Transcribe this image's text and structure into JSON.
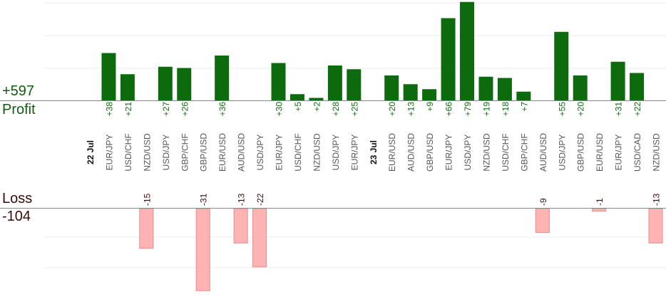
{
  "summary": {
    "profit_total": "+597",
    "profit_label": "Profit",
    "loss_label": "Loss",
    "loss_total": "-104"
  },
  "colors": {
    "profit_bar": "#0d6b0d",
    "profit_text": "#0f6e0f",
    "loss_bar": "#ffb3b3",
    "loss_bar_border": "#e88b8b",
    "loss_text": "#3a0a0a",
    "grid": "#eeeeee",
    "axis": "#888888"
  },
  "chart_data": {
    "type": "bar",
    "date_labels": [
      "22 Jul",
      "23 Jul"
    ],
    "grid": true,
    "items": [
      {
        "kind": "date",
        "label": "22 Jul"
      },
      {
        "kind": "trade",
        "pair": "EUR/JPY",
        "value": 38,
        "label": "+38"
      },
      {
        "kind": "trade",
        "pair": "USD/CHF",
        "value": 21,
        "label": "+21"
      },
      {
        "kind": "trade",
        "pair": "NZD/USD",
        "value": -15,
        "label": "-15"
      },
      {
        "kind": "trade",
        "pair": "USD/JPY",
        "value": 27,
        "label": "+27"
      },
      {
        "kind": "trade",
        "pair": "GBP/CHF",
        "value": 26,
        "label": "+26"
      },
      {
        "kind": "trade",
        "pair": "GBP/USD",
        "value": -31,
        "label": "-31"
      },
      {
        "kind": "trade",
        "pair": "EUR/USD",
        "value": 36,
        "label": "+36"
      },
      {
        "kind": "trade",
        "pair": "AUD/USD",
        "value": -13,
        "label": "-13"
      },
      {
        "kind": "trade",
        "pair": "USD/JPY",
        "value": -22,
        "label": "-22"
      },
      {
        "kind": "trade",
        "pair": "EUR/JPY",
        "value": 30,
        "label": "+30"
      },
      {
        "kind": "trade",
        "pair": "USD/CHF",
        "value": 5,
        "label": "+5"
      },
      {
        "kind": "trade",
        "pair": "NZD/USD",
        "value": 2,
        "label": "+2"
      },
      {
        "kind": "trade",
        "pair": "USD/JPY",
        "value": 28,
        "label": "+28"
      },
      {
        "kind": "trade",
        "pair": "EUR/JPY",
        "value": 25,
        "label": "+25"
      },
      {
        "kind": "date",
        "label": "23 Jul"
      },
      {
        "kind": "trade",
        "pair": "EUR/USD",
        "value": 20,
        "label": "+20"
      },
      {
        "kind": "trade",
        "pair": "AUD/USD",
        "value": 13,
        "label": "+13"
      },
      {
        "kind": "trade",
        "pair": "GBP/USD",
        "value": 9,
        "label": "+9"
      },
      {
        "kind": "trade",
        "pair": "EUR/JPY",
        "value": 66,
        "label": "+66"
      },
      {
        "kind": "trade",
        "pair": "USD/JPY",
        "value": 79,
        "label": "+79"
      },
      {
        "kind": "trade",
        "pair": "NZD/USD",
        "value": 19,
        "label": "+19"
      },
      {
        "kind": "trade",
        "pair": "USD/CHF",
        "value": 18,
        "label": "+18"
      },
      {
        "kind": "trade",
        "pair": "GBP/CHF",
        "value": 7,
        "label": "+7"
      },
      {
        "kind": "trade",
        "pair": "AUD/USD",
        "value": -9,
        "label": "-9"
      },
      {
        "kind": "trade",
        "pair": "USD/JPY",
        "value": 55,
        "label": "+55"
      },
      {
        "kind": "trade",
        "pair": "GBP/USD",
        "value": 20,
        "label": "+20"
      },
      {
        "kind": "trade",
        "pair": "EUR/USD",
        "value": -1,
        "label": "-1"
      },
      {
        "kind": "trade",
        "pair": "EUR/JPY",
        "value": 31,
        "label": "+31"
      },
      {
        "kind": "trade",
        "pair": "USD/CAD",
        "value": 22,
        "label": "+22"
      },
      {
        "kind": "trade",
        "pair": "NZD/USD",
        "value": -13,
        "label": "-13"
      }
    ]
  }
}
